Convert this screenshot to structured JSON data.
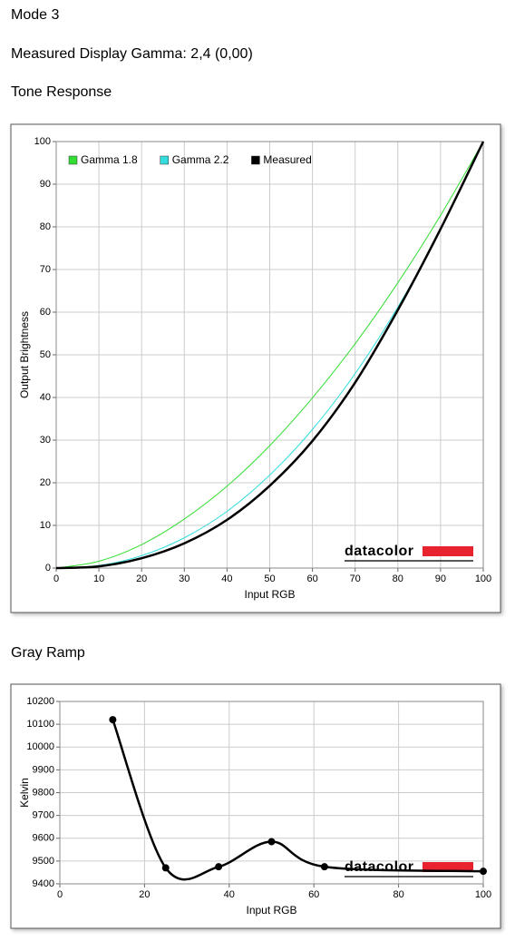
{
  "page": {
    "mode": "Mode 3",
    "gamma_line": "Measured Display Gamma: 2,4 (0,00)",
    "section_tone": "Tone Response",
    "section_gray": "Gray Ramp"
  },
  "chart_data": [
    {
      "type": "line",
      "xlabel": "Input RGB",
      "ylabel": "Output Brightness",
      "watermark": "datacolor",
      "x": [
        0,
        10,
        20,
        30,
        40,
        50,
        60,
        70,
        80,
        90,
        100
      ],
      "series": [
        {
          "name": "Gamma 1.8",
          "color": "#33dd33",
          "values": [
            0,
            1.6,
            5.5,
            11.5,
            19.2,
            28.7,
            39.9,
            52.6,
            66.9,
            82.7,
            100
          ]
        },
        {
          "name": "Gamma 2.2",
          "color": "#33dddd",
          "values": [
            0,
            0.6,
            2.9,
            7.1,
            13.3,
            21.8,
            32.5,
            45.6,
            61.2,
            79.3,
            100
          ]
        },
        {
          "name": "Measured",
          "color": "#000000",
          "values": [
            0,
            0.4,
            2.3,
            5.8,
            11.3,
            19.3,
            29.8,
            43.5,
            60.5,
            79.5,
            100
          ]
        }
      ],
      "xlim": [
        0,
        100
      ],
      "ylim": [
        0,
        100
      ],
      "xticks": [
        0,
        10,
        20,
        30,
        40,
        50,
        60,
        70,
        80,
        90,
        100
      ],
      "yticks": [
        0,
        10,
        20,
        30,
        40,
        50,
        60,
        70,
        80,
        90,
        100
      ],
      "grid": true,
      "legend": "top-left"
    },
    {
      "type": "line",
      "xlabel": "Input RGB",
      "ylabel": "Kelvin",
      "watermark": "datacolor",
      "x": [
        12.5,
        25,
        37.5,
        50,
        62.5,
        100
      ],
      "series": [
        {
          "color": "#000000",
          "values": [
            10120,
            9470,
            9475,
            9585,
            9475,
            9455
          ]
        }
      ],
      "xlim": [
        0,
        100
      ],
      "ylim": [
        9400,
        10200
      ],
      "xticks": [
        0,
        20,
        40,
        60,
        80,
        100
      ],
      "yticks": [
        9400,
        9500,
        9600,
        9700,
        9800,
        9900,
        10000,
        10100,
        10200
      ],
      "grid": true,
      "markers": true
    }
  ]
}
